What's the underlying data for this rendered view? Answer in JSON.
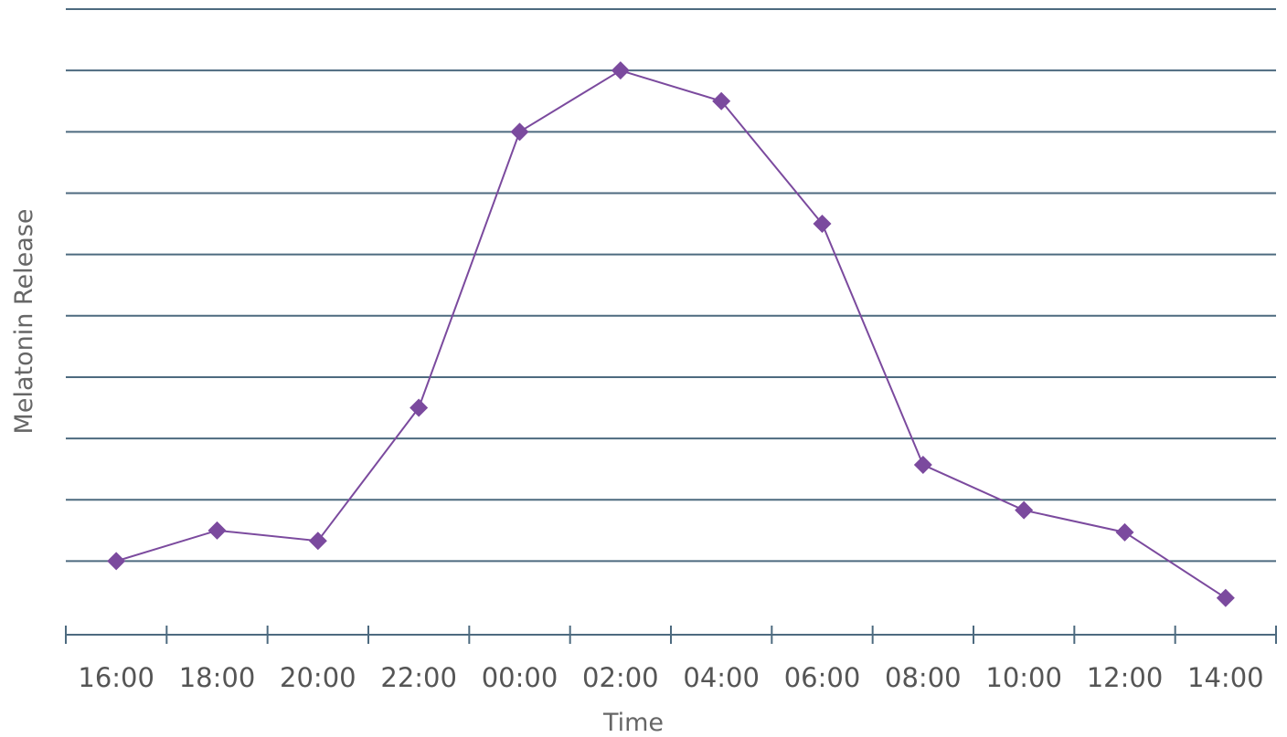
{
  "chart_data": {
    "type": "line",
    "title": "",
    "xlabel": "Time",
    "ylabel": "Melatonin Release",
    "categories": [
      "16:00",
      "18:00",
      "20:00",
      "22:00",
      "00:00",
      "02:00",
      "04:00",
      "06:00",
      "08:00",
      "10:00",
      "12:00",
      "14:00"
    ],
    "series": [
      {
        "values": [
          1.0,
          1.5,
          1.33,
          3.5,
          8.0,
          9.0,
          8.5,
          6.5,
          2.57,
          1.83,
          1.47,
          0.4
        ],
        "marker": "diamond"
      }
    ],
    "ylim": [
      -0.2,
      10
    ],
    "grid": true,
    "legend": "none",
    "colors": {
      "series": "#7b4a9e",
      "grid": "#4d6a7f",
      "text": "#555555"
    }
  }
}
